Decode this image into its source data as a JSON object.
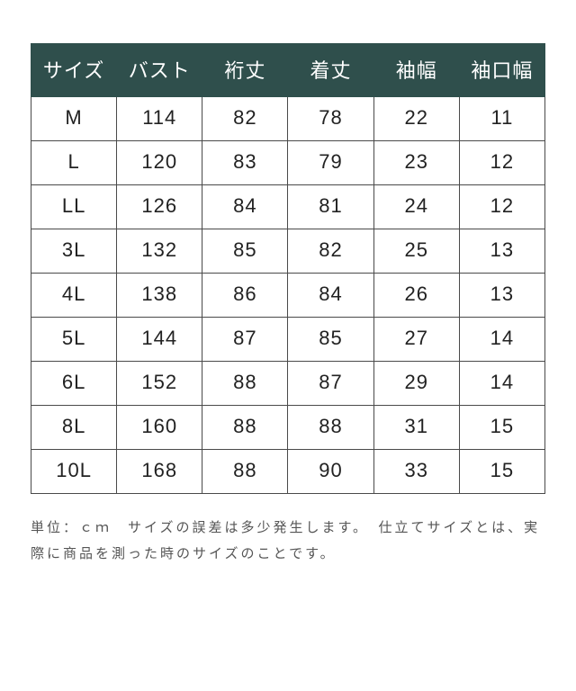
{
  "table": {
    "type": "table",
    "header_bg": "#2f4f4c",
    "header_text_color": "#ffffff",
    "cell_border_color": "#4a4a4a",
    "cell_text_color": "#222222",
    "background_color": "#ffffff",
    "header_fontsize": 22,
    "cell_fontsize": 22,
    "columns": [
      "サイズ",
      "バスト",
      "裄丈",
      "着丈",
      "袖幅",
      "袖口幅"
    ],
    "rows": [
      [
        "M",
        "114",
        "82",
        "78",
        "22",
        "11"
      ],
      [
        "L",
        "120",
        "83",
        "79",
        "23",
        "12"
      ],
      [
        "LL",
        "126",
        "84",
        "81",
        "24",
        "12"
      ],
      [
        "3L",
        "132",
        "85",
        "82",
        "25",
        "13"
      ],
      [
        "4L",
        "138",
        "86",
        "84",
        "26",
        "13"
      ],
      [
        "5L",
        "144",
        "87",
        "85",
        "27",
        "14"
      ],
      [
        "6L",
        "152",
        "88",
        "87",
        "29",
        "14"
      ],
      [
        "8L",
        "160",
        "88",
        "88",
        "31",
        "15"
      ],
      [
        "10L",
        "168",
        "88",
        "90",
        "33",
        "15"
      ]
    ]
  },
  "footnote": "単位：ｃｍ　サイズの誤差は多少発生します。　仕立てサイズとは、実際に商品を測った時のサイズのことです。"
}
